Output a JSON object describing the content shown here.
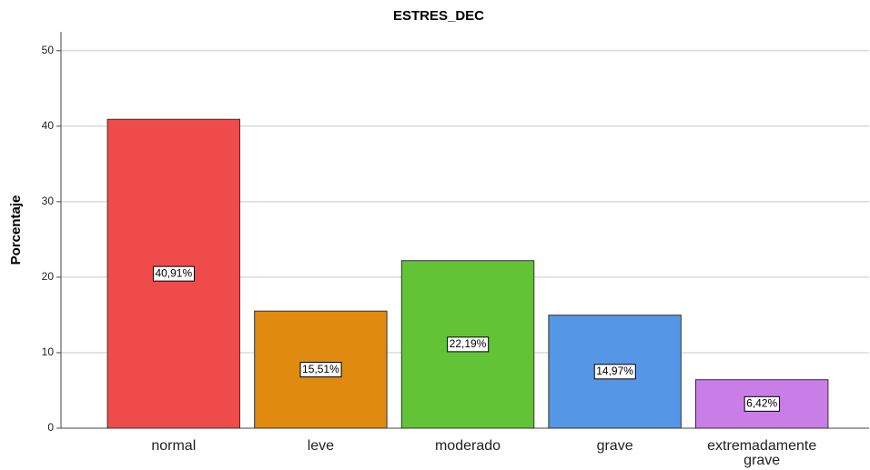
{
  "chart_data": {
    "type": "bar",
    "title": "ESTRES_DEC",
    "y_label": "Porcentaje",
    "categories": [
      "normal",
      "leve",
      "moderado",
      "grave",
      "extremadamente grave"
    ],
    "values": [
      40.91,
      15.51,
      22.19,
      14.97,
      6.42
    ],
    "value_labels": [
      "40,91%",
      "15,51%",
      "22,19%",
      "14,97%",
      "6,42%"
    ],
    "colors": [
      "#ef4b4b",
      "#e08a10",
      "#62c337",
      "#5596e6",
      "#c97de6"
    ],
    "ylim": [
      0,
      52.5
    ],
    "yticks": [
      0,
      10,
      20,
      30,
      40,
      50
    ],
    "grid": true
  }
}
